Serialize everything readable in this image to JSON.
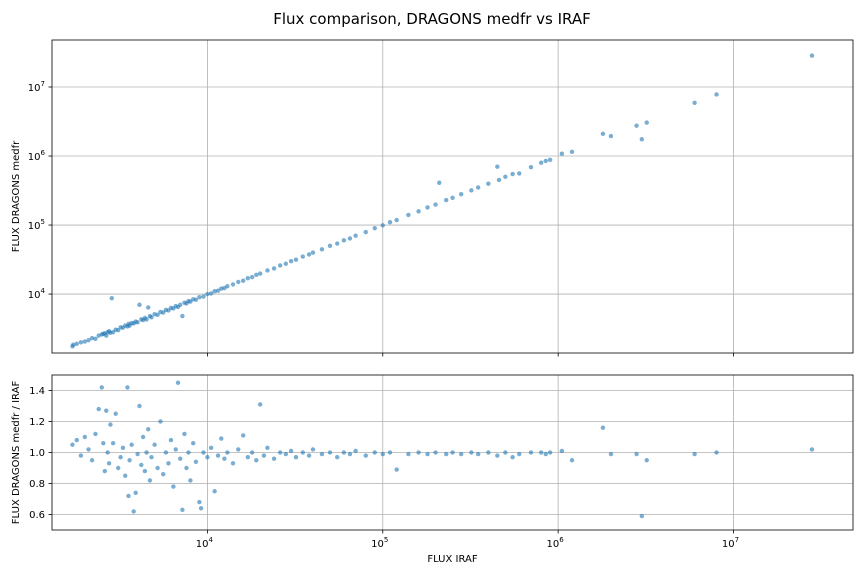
{
  "figure": {
    "title": "Flux comparison, DRAGONS medfr vs IRAF"
  },
  "colors": {
    "points": "#1f77b4",
    "grid": "#b0b0b0"
  },
  "chart_data": [
    {
      "type": "scatter",
      "panel": "top",
      "title": "Flux comparison, DRAGONS medfr vs IRAF",
      "xlabel": "",
      "ylabel": "FLUX DRAGONS medfr",
      "xscale": "log",
      "yscale": "log",
      "xlim": [
        1300,
        48000000
      ],
      "ylim": [
        1400,
        48000000
      ],
      "grid": true,
      "yticks": [
        {
          "value": 10000,
          "base": "10",
          "exp": "4"
        },
        {
          "value": 100000,
          "base": "10",
          "exp": "5"
        },
        {
          "value": 1000000,
          "base": "10",
          "exp": "6"
        },
        {
          "value": 10000000,
          "base": "10",
          "exp": "7"
        }
      ],
      "points": [
        [
          1700,
          1750
        ],
        [
          1720,
          1850
        ],
        [
          1800,
          1900
        ],
        [
          1900,
          2000
        ],
        [
          2000,
          2050
        ],
        [
          2100,
          2150
        ],
        [
          2200,
          2300
        ],
        [
          2300,
          2250
        ],
        [
          2400,
          2500
        ],
        [
          2500,
          2600
        ],
        [
          2550,
          2650
        ],
        [
          2600,
          2700
        ],
        [
          2650,
          2500
        ],
        [
          2700,
          2800
        ],
        [
          2750,
          2900
        ],
        [
          2800,
          2750
        ],
        [
          2850,
          8700
        ],
        [
          2900,
          2800
        ],
        [
          3000,
          3050
        ],
        [
          3100,
          3000
        ],
        [
          3200,
          3300
        ],
        [
          3300,
          3250
        ],
        [
          3400,
          3500
        ],
        [
          3500,
          3400
        ],
        [
          3550,
          3700
        ],
        [
          3600,
          3500
        ],
        [
          3700,
          3800
        ],
        [
          3800,
          3750
        ],
        [
          3900,
          4000
        ],
        [
          4000,
          3900
        ],
        [
          4100,
          7000
        ],
        [
          4200,
          4300
        ],
        [
          4300,
          4200
        ],
        [
          4400,
          4500
        ],
        [
          4500,
          4300
        ],
        [
          4600,
          6400
        ],
        [
          4700,
          4800
        ],
        [
          4800,
          4600
        ],
        [
          5000,
          5100
        ],
        [
          5200,
          5000
        ],
        [
          5400,
          5500
        ],
        [
          5600,
          5400
        ],
        [
          5800,
          5900
        ],
        [
          6000,
          5800
        ],
        [
          6200,
          6300
        ],
        [
          6400,
          6200
        ],
        [
          6600,
          6700
        ],
        [
          6800,
          6500
        ],
        [
          7000,
          7000
        ],
        [
          7200,
          4800
        ],
        [
          7400,
          7500
        ],
        [
          7600,
          7300
        ],
        [
          7800,
          7900
        ],
        [
          8000,
          7800
        ],
        [
          8300,
          8400
        ],
        [
          8600,
          8300
        ],
        [
          9000,
          9000
        ],
        [
          9500,
          9200
        ],
        [
          10000,
          10000
        ],
        [
          10500,
          10200
        ],
        [
          11000,
          11000
        ],
        [
          11500,
          11200
        ],
        [
          12000,
          12000
        ],
        [
          12500,
          12200
        ],
        [
          13000,
          13000
        ],
        [
          14000,
          13800
        ],
        [
          15000,
          15000
        ],
        [
          16000,
          15600
        ],
        [
          17000,
          17000
        ],
        [
          18000,
          17600
        ],
        [
          19000,
          19000
        ],
        [
          20000,
          19800
        ],
        [
          22000,
          22000
        ],
        [
          24000,
          23500
        ],
        [
          26000,
          26000
        ],
        [
          28000,
          27500
        ],
        [
          30000,
          30000
        ],
        [
          32000,
          31500
        ],
        [
          35000,
          35000
        ],
        [
          38000,
          37500
        ],
        [
          40000,
          40000
        ],
        [
          45000,
          44500
        ],
        [
          50000,
          50000
        ],
        [
          55000,
          54000
        ],
        [
          60000,
          60000
        ],
        [
          65000,
          64000
        ],
        [
          70000,
          70000
        ],
        [
          80000,
          79000
        ],
        [
          90000,
          90000
        ],
        [
          100000,
          99000
        ],
        [
          110000,
          110000
        ],
        [
          120000,
          118000
        ],
        [
          140000,
          140000
        ],
        [
          160000,
          158000
        ],
        [
          180000,
          180000
        ],
        [
          200000,
          198000
        ],
        [
          210000,
          410000
        ],
        [
          230000,
          230000
        ],
        [
          250000,
          248000
        ],
        [
          280000,
          280000
        ],
        [
          320000,
          318000
        ],
        [
          350000,
          350000
        ],
        [
          400000,
          398000
        ],
        [
          450000,
          700000
        ],
        [
          460000,
          450000
        ],
        [
          500000,
          500000
        ],
        [
          550000,
          548000
        ],
        [
          600000,
          560000
        ],
        [
          700000,
          690000
        ],
        [
          800000,
          800000
        ],
        [
          850000,
          850000
        ],
        [
          900000,
          880000
        ],
        [
          1050000,
          1080000
        ],
        [
          1200000,
          1150000
        ],
        [
          1800000,
          2100000
        ],
        [
          2000000,
          1950000
        ],
        [
          2800000,
          2750000
        ],
        [
          3000000,
          1750000
        ],
        [
          3200000,
          3050000
        ],
        [
          6000000,
          5900000
        ],
        [
          8000000,
          7800000
        ],
        [
          28000000,
          28500000
        ]
      ]
    },
    {
      "type": "scatter",
      "panel": "bottom",
      "xlabel": "FLUX IRAF",
      "ylabel": "FLUX DRAGONS medfr / IRAF",
      "xscale": "log",
      "yscale": "linear",
      "xlim": [
        1300,
        48000000
      ],
      "ylim": [
        0.5,
        1.5
      ],
      "grid": true,
      "xticks": [
        {
          "value": 10000,
          "base": "10",
          "exp": "4"
        },
        {
          "value": 100000,
          "base": "10",
          "exp": "5"
        },
        {
          "value": 1000000,
          "base": "10",
          "exp": "6"
        },
        {
          "value": 10000000,
          "base": "10",
          "exp": "7"
        }
      ],
      "yticks": [
        {
          "value": 0.6,
          "label": "0.6"
        },
        {
          "value": 0.8,
          "label": "0.8"
        },
        {
          "value": 1.0,
          "label": "1.0"
        },
        {
          "value": 1.2,
          "label": "1.2"
        },
        {
          "value": 1.4,
          "label": "1.4"
        }
      ],
      "points": [
        [
          1700,
          1.05
        ],
        [
          1800,
          1.08
        ],
        [
          1900,
          0.98
        ],
        [
          2000,
          1.1
        ],
        [
          2100,
          1.02
        ],
        [
          2200,
          0.95
        ],
        [
          2300,
          1.12
        ],
        [
          2400,
          1.28
        ],
        [
          2500,
          1.42
        ],
        [
          2550,
          1.06
        ],
        [
          2600,
          0.88
        ],
        [
          2650,
          1.27
        ],
        [
          2700,
          1.0
        ],
        [
          2750,
          0.93
        ],
        [
          2800,
          1.18
        ],
        [
          2900,
          1.06
        ],
        [
          3000,
          1.25
        ],
        [
          3100,
          0.9
        ],
        [
          3200,
          0.97
        ],
        [
          3300,
          1.03
        ],
        [
          3400,
          0.85
        ],
        [
          3500,
          1.42
        ],
        [
          3550,
          0.72
        ],
        [
          3600,
          0.95
        ],
        [
          3700,
          1.05
        ],
        [
          3800,
          0.62
        ],
        [
          3900,
          0.74
        ],
        [
          4000,
          0.99
        ],
        [
          4100,
          1.3
        ],
        [
          4200,
          0.92
        ],
        [
          4300,
          1.1
        ],
        [
          4400,
          0.88
        ],
        [
          4500,
          1.0
        ],
        [
          4600,
          1.15
        ],
        [
          4700,
          0.82
        ],
        [
          4800,
          0.97
        ],
        [
          5000,
          1.05
        ],
        [
          5200,
          0.9
        ],
        [
          5400,
          1.2
        ],
        [
          5600,
          0.86
        ],
        [
          5800,
          1.0
        ],
        [
          6000,
          0.93
        ],
        [
          6200,
          1.08
        ],
        [
          6400,
          0.78
        ],
        [
          6600,
          1.02
        ],
        [
          6800,
          1.45
        ],
        [
          7000,
          0.96
        ],
        [
          7200,
          0.63
        ],
        [
          7400,
          1.12
        ],
        [
          7600,
          0.9
        ],
        [
          7800,
          1.0
        ],
        [
          8000,
          0.82
        ],
        [
          8300,
          1.06
        ],
        [
          8600,
          0.94
        ],
        [
          9000,
          0.68
        ],
        [
          9200,
          0.64
        ],
        [
          9500,
          1.0
        ],
        [
          10000,
          0.97
        ],
        [
          10500,
          1.03
        ],
        [
          11000,
          0.75
        ],
        [
          11500,
          0.98
        ],
        [
          12000,
          1.09
        ],
        [
          12500,
          0.96
        ],
        [
          13000,
          1.0
        ],
        [
          14000,
          0.93
        ],
        [
          15000,
          1.02
        ],
        [
          16000,
          1.11
        ],
        [
          17000,
          0.97
        ],
        [
          18000,
          1.0
        ],
        [
          19000,
          0.95
        ],
        [
          20000,
          1.31
        ],
        [
          21000,
          0.98
        ],
        [
          22000,
          1.03
        ],
        [
          24000,
          0.96
        ],
        [
          26000,
          1.0
        ],
        [
          28000,
          0.99
        ],
        [
          30000,
          1.01
        ],
        [
          32000,
          0.97
        ],
        [
          35000,
          1.0
        ],
        [
          38000,
          0.98
        ],
        [
          40000,
          1.02
        ],
        [
          45000,
          0.99
        ],
        [
          50000,
          1.0
        ],
        [
          55000,
          0.97
        ],
        [
          60000,
          1.0
        ],
        [
          65000,
          0.99
        ],
        [
          70000,
          1.01
        ],
        [
          80000,
          0.98
        ],
        [
          90000,
          1.0
        ],
        [
          100000,
          0.99
        ],
        [
          110000,
          1.0
        ],
        [
          120000,
          0.89
        ],
        [
          140000,
          0.99
        ],
        [
          160000,
          1.0
        ],
        [
          180000,
          0.99
        ],
        [
          200000,
          1.0
        ],
        [
          230000,
          0.99
        ],
        [
          250000,
          1.0
        ],
        [
          280000,
          0.99
        ],
        [
          320000,
          1.0
        ],
        [
          350000,
          0.99
        ],
        [
          400000,
          1.0
        ],
        [
          450000,
          0.98
        ],
        [
          500000,
          1.0
        ],
        [
          550000,
          0.97
        ],
        [
          600000,
          0.99
        ],
        [
          700000,
          1.0
        ],
        [
          800000,
          1.0
        ],
        [
          850000,
          0.99
        ],
        [
          900000,
          1.0
        ],
        [
          1050000,
          1.01
        ],
        [
          1200000,
          0.95
        ],
        [
          1800000,
          1.16
        ],
        [
          2000000,
          0.99
        ],
        [
          2800000,
          0.99
        ],
        [
          3000000,
          0.59
        ],
        [
          3200000,
          0.95
        ],
        [
          6000000,
          0.99
        ],
        [
          8000000,
          1.0
        ],
        [
          28000000,
          1.02
        ]
      ]
    }
  ]
}
